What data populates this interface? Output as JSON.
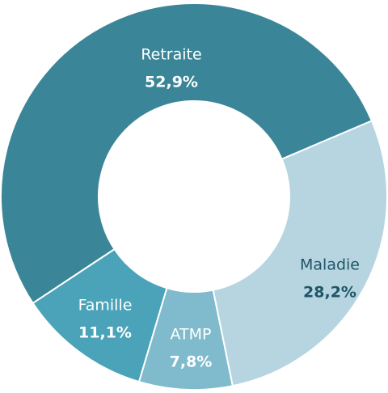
{
  "chart_data": {
    "type": "donut",
    "categories": [
      "Retraite",
      "Maladie",
      "ATMP",
      "Famille"
    ],
    "values": [
      52.9,
      28.2,
      7.8,
      11.1
    ],
    "value_labels": [
      "52,9%",
      "28,2%",
      "7,8%",
      "11,1%"
    ],
    "colors": [
      "#3a8698",
      "#b6d5e0",
      "#80bacd",
      "#4aa3b8"
    ]
  }
}
